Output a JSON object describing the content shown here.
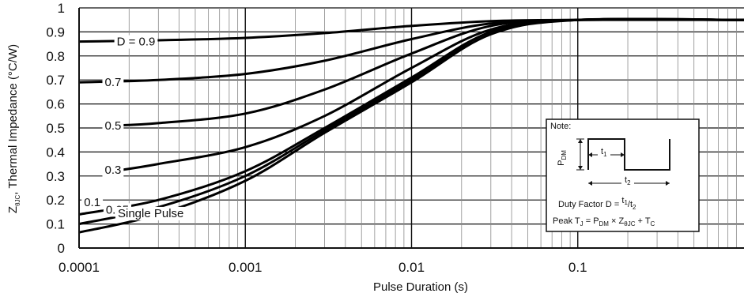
{
  "chart_data": {
    "type": "line",
    "title": "",
    "xlabel": "Pulse Duration (s)",
    "ylabel_main": "Z",
    "ylabel_sub": "θJC",
    "ylabel_rest": ", Thermal Impedance (°C/W)",
    "xscale": "log",
    "xlim": [
      0.0001,
      1
    ],
    "ylim": [
      0,
      1
    ],
    "x_ticks": [
      {
        "value": 0.0001,
        "label": "0.0001"
      },
      {
        "value": 0.001,
        "label": "0.001"
      },
      {
        "value": 0.01,
        "label": "0.01"
      },
      {
        "value": 0.1,
        "label": "0.1"
      }
    ],
    "y_ticks": [
      {
        "value": 0,
        "label": "0"
      },
      {
        "value": 0.1,
        "label": "0.1"
      },
      {
        "value": 0.2,
        "label": "0.2"
      },
      {
        "value": 0.3,
        "label": "0.3"
      },
      {
        "value": 0.4,
        "label": "0.4"
      },
      {
        "value": 0.5,
        "label": "0.5"
      },
      {
        "value": 0.6,
        "label": "0.6"
      },
      {
        "value": 0.7,
        "label": "0.7"
      },
      {
        "value": 0.8,
        "label": "0.8"
      },
      {
        "value": 0.9,
        "label": "0.9"
      },
      {
        "value": 1,
        "label": "1"
      }
    ],
    "grid": true,
    "series": [
      {
        "name": "D = 0.9",
        "label_x": 0.00022,
        "label_y": 0.86,
        "x": [
          0.0001,
          0.0003,
          0.001,
          0.003,
          0.01,
          0.03,
          0.1,
          1
        ],
        "y": [
          0.86,
          0.865,
          0.875,
          0.895,
          0.925,
          0.945,
          0.95,
          0.95
        ]
      },
      {
        "name": "0.7",
        "label_x": 0.00016,
        "label_y": 0.69,
        "x": [
          0.0001,
          0.0003,
          0.001,
          0.003,
          0.01,
          0.03,
          0.1,
          1
        ],
        "y": [
          0.69,
          0.7,
          0.725,
          0.78,
          0.87,
          0.935,
          0.95,
          0.95
        ]
      },
      {
        "name": "0.5",
        "label_x": 0.00016,
        "label_y": 0.51,
        "x": [
          0.00016,
          0.0003,
          0.001,
          0.003,
          0.01,
          0.03,
          0.1,
          1
        ],
        "y": [
          0.51,
          0.52,
          0.56,
          0.66,
          0.81,
          0.925,
          0.95,
          0.95
        ]
      },
      {
        "name": "0.3",
        "label_x": 0.00016,
        "label_y": 0.325,
        "x": [
          0.00016,
          0.0003,
          0.001,
          0.003,
          0.01,
          0.03,
          0.1,
          1
        ],
        "y": [
          0.32,
          0.35,
          0.42,
          0.55,
          0.75,
          0.91,
          0.95,
          0.95
        ]
      },
      {
        "name": "0.1",
        "label_x": 0.00012,
        "label_y": 0.19,
        "x": [
          0.0001,
          0.0003,
          0.001,
          0.003,
          0.01,
          0.03,
          0.1,
          1
        ],
        "y": [
          0.14,
          0.2,
          0.32,
          0.5,
          0.71,
          0.9,
          0.95,
          0.95
        ]
      },
      {
        "name": "0.05",
        "label_x": 0.00017,
        "label_y": 0.16,
        "x": [
          0.0001,
          0.0003,
          0.001,
          0.003,
          0.01,
          0.03,
          0.1,
          1
        ],
        "y": [
          0.1,
          0.17,
          0.3,
          0.49,
          0.7,
          0.9,
          0.95,
          0.95
        ]
      },
      {
        "name": "Single Pulse",
        "label_x": 0.00027,
        "label_y": 0.145,
        "x": [
          0.0001,
          0.0003,
          0.001,
          0.003,
          0.01,
          0.03,
          0.1,
          1
        ],
        "y": [
          0.065,
          0.14,
          0.28,
          0.48,
          0.69,
          0.89,
          0.95,
          0.95
        ]
      }
    ],
    "note": {
      "title": "Note:",
      "pdm": "P",
      "pdm_sub": "DM",
      "t1": "t",
      "t1_sub": "1",
      "t2": "t",
      "t2_sub": "2",
      "duty_prefix": "Duty Factor D = ",
      "duty_num": "t",
      "duty_num_sub": "1",
      "duty_slash": "/",
      "duty_den": "t",
      "duty_den_sub": "2",
      "peak_prefix": "Peak T",
      "peak_tj_sub": "J",
      "peak_eq": " = P",
      "peak_pdm_sub": "DM",
      "peak_times": " × Z",
      "peak_z_sub": "θJC",
      "peak_plus": " + T",
      "peak_tc_sub": "C"
    }
  }
}
